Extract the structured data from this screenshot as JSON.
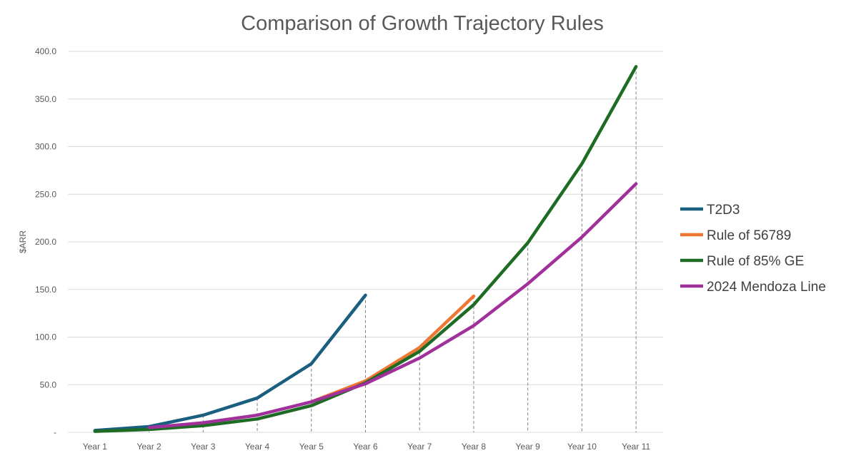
{
  "chart_data": {
    "type": "line",
    "title": "Comparison of Growth Trajectory Rules",
    "xlabel": "",
    "ylabel": "$ARR",
    "ylim": [
      0,
      400
    ],
    "yticks": [
      "-",
      "50.0",
      "100.0",
      "150.0",
      "200.0",
      "250.0",
      "300.0",
      "350.0",
      "400.0"
    ],
    "grid": true,
    "drop_lines": true,
    "legend_position": "right",
    "categories": [
      "Year 1",
      "Year 2",
      "Year 3",
      "Year 4",
      "Year 5",
      "Year 6",
      "Year 7",
      "Year 8",
      "Year 9",
      "Year 10",
      "Year 11"
    ],
    "series": [
      {
        "name": "T2D3",
        "color": "#1a5e80",
        "values": [
          2,
          6,
          18,
          36,
          72,
          144,
          null,
          null,
          null,
          null,
          null
        ]
      },
      {
        "name": "Rule of 56789",
        "color": "#ee7733",
        "values": [
          null,
          null,
          null,
          null,
          32,
          54,
          89,
          143,
          null,
          null,
          null
        ]
      },
      {
        "name": "Rule of 85% GE",
        "color": "#1e6b23",
        "values": [
          1,
          3,
          7,
          14,
          28,
          52,
          85,
          134,
          199,
          282,
          384
        ]
      },
      {
        "name": "2024 Mendoza Line",
        "color": "#a0309a",
        "values": [
          null,
          5,
          10,
          18,
          32,
          51,
          78,
          112,
          156,
          205,
          261
        ]
      }
    ]
  }
}
